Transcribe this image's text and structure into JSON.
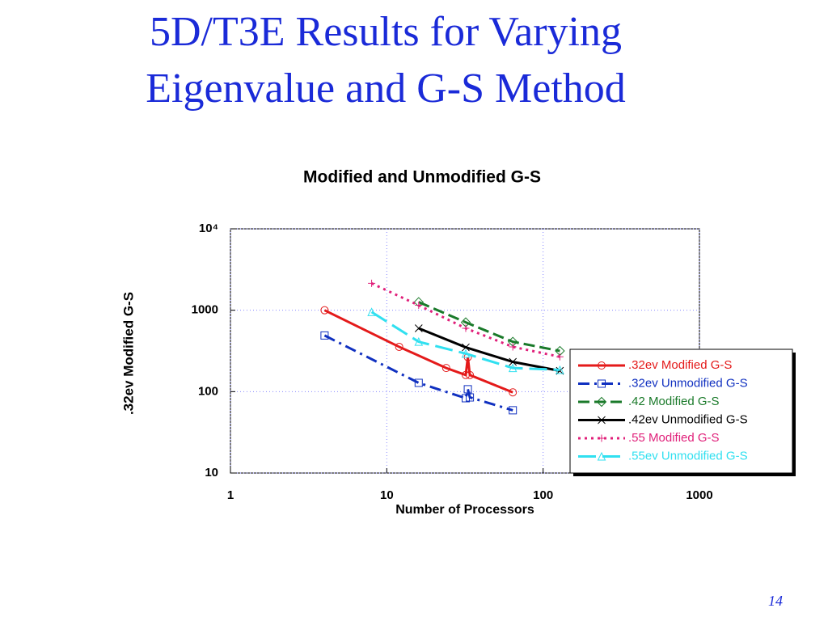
{
  "slide": {
    "title": [
      "5D/T3E Results for Varying",
      "Eigenvalue and G-S Method"
    ],
    "page": "14"
  },
  "chart_data": {
    "type": "line",
    "title": "Modified and Unmodified G-S",
    "x_label": "Number of Processors",
    "y_label": ".32ev Modified G-S",
    "xscale": "log",
    "yscale": "log",
    "grid": true,
    "legend": "lower right",
    "xlim": [
      1,
      1000
    ],
    "xticks": [
      1,
      10,
      100,
      1000
    ],
    "ylim": [
      10,
      10000
    ],
    "yticks": [
      10,
      100,
      1000,
      {
        "value": 10000,
        "label": "10⁴"
      }
    ],
    "series": [
      {
        "name": ".32ev Modified G-S",
        "color": "#e41a1a",
        "dash": "solid",
        "marker": "circle",
        "x": [
          4,
          12,
          24,
          32,
          33,
          34,
          64
        ],
        "values": [
          1000,
          355,
          195,
          160,
          265,
          160,
          98
        ]
      },
      {
        "name": ".32ev Unmodified G-S",
        "color": "#1030c0",
        "dash": "dashdot",
        "marker": "square",
        "x": [
          4,
          16,
          32,
          33,
          34,
          64
        ],
        "values": [
          490,
          128,
          83,
          107,
          85,
          59
        ]
      },
      {
        "name": ".42 Modified G-S",
        "color": "#1a7a2a",
        "dash": "dashed",
        "marker": "diamond",
        "x": [
          16,
          32,
          64,
          128
        ],
        "values": [
          1260,
          710,
          410,
          316
        ]
      },
      {
        "name": ".42ev Unmodified G-S",
        "color": "#000000",
        "dash": "solid",
        "marker": "cross",
        "x": [
          16,
          32,
          64,
          128
        ],
        "values": [
          600,
          350,
          232,
          180
        ]
      },
      {
        "name": ".55 Modified G-S",
        "color": "#e0207a",
        "dash": "dotted",
        "marker": "plus",
        "x": [
          8,
          16,
          32,
          64,
          128
        ],
        "values": [
          2140,
          1150,
          600,
          355,
          268
        ]
      },
      {
        "name": ".55ev Unmodified G-S",
        "color": "#30e0f0",
        "dash": "longdash",
        "marker": "triangle",
        "x": [
          8,
          16,
          32,
          64,
          128
        ],
        "values": [
          950,
          410,
          293,
          195,
          185
        ]
      }
    ]
  }
}
